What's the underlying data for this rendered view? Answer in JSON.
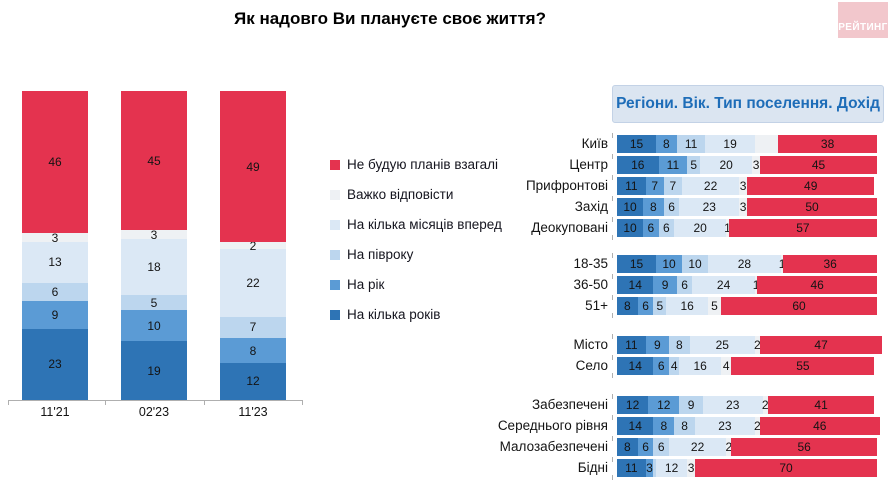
{
  "title": "Як надовго Ви плануєте своє життя?",
  "logo": {
    "text": "РЕЙТИНГ"
  },
  "colors": {
    "no_plans": "#E4334F",
    "hard_to_answer": "#EEF1F4",
    "few_months": "#DBE8F5",
    "half_year": "#BCD6EE",
    "one_year": "#5B9BD5",
    "several_years": "#2E74B5",
    "header_bg": "#DBE5F1",
    "header_text": "#1E6DB8",
    "logo_bg": "#F2C7CC",
    "axis": "#AFAFAF",
    "value_text": "#141414"
  },
  "legend": {
    "items": [
      {
        "label": "Не будую планів взагалі",
        "color_key": "no_plans"
      },
      {
        "label": "Важко відповісти",
        "color_key": "hard_to_answer"
      },
      {
        "label": "На кілька місяців вперед",
        "color_key": "few_months"
      },
      {
        "label": "На півроку",
        "color_key": "half_year"
      },
      {
        "label": "На рік",
        "color_key": "one_year"
      },
      {
        "label": "На кілька років",
        "color_key": "several_years"
      }
    ]
  },
  "chart_data": [
    {
      "type": "bar",
      "stacked": true,
      "orientation": "vertical",
      "title": "",
      "ylim": [
        0,
        100
      ],
      "categories": [
        "11'21",
        "02'23",
        "11'23"
      ],
      "series": [
        {
          "name": "На кілька років",
          "color_key": "several_years",
          "values": [
            23,
            19,
            12
          ]
        },
        {
          "name": "На рік",
          "color_key": "one_year",
          "values": [
            9,
            10,
            8
          ]
        },
        {
          "name": "На півроку",
          "color_key": "half_year",
          "values": [
            6,
            5,
            7
          ]
        },
        {
          "name": "На кілька місяців вперед",
          "color_key": "few_months",
          "values": [
            13,
            18,
            22
          ]
        },
        {
          "name": "Важко відповісти",
          "color_key": "hard_to_answer",
          "values": [
            3,
            3,
            2
          ]
        },
        {
          "name": "Не будую планів взагалі",
          "color_key": "no_plans",
          "values": [
            46,
            45,
            49
          ]
        }
      ]
    },
    {
      "type": "bar",
      "stacked": true,
      "orientation": "horizontal",
      "title": "Регіони. Вік. Тип поселення. Дохід",
      "xlim": [
        0,
        100
      ],
      "segment_order": [
        "На кілька років",
        "На рік",
        "На півроку",
        "На кілька місяців вперед",
        "Важко відповісти",
        "Не будую планів взагалі"
      ],
      "series_color_keys": [
        "several_years",
        "one_year",
        "half_year",
        "few_months",
        "hard_to_answer",
        "no_plans"
      ],
      "groups": [
        {
          "id": "regions",
          "rows": [
            {
              "label": "Київ",
              "values": [
                15,
                8,
                11,
                19,
                9,
                38
              ],
              "display": [
                "15",
                "8",
                "11",
                "19",
                "",
                "38"
              ]
            },
            {
              "label": "Центр",
              "values": [
                16,
                11,
                5,
                20,
                3,
                45
              ]
            },
            {
              "label": "Прифронтові",
              "values": [
                11,
                7,
                7,
                22,
                3,
                49
              ]
            },
            {
              "label": "Захід",
              "values": [
                10,
                8,
                6,
                23,
                3,
                50
              ]
            },
            {
              "label": "Деокуповані",
              "values": [
                10,
                6,
                6,
                20,
                1,
                57
              ]
            }
          ]
        },
        {
          "id": "age",
          "rows": [
            {
              "label": "18-35",
              "values": [
                15,
                10,
                10,
                28,
                1,
                36
              ]
            },
            {
              "label": "36-50",
              "values": [
                14,
                9,
                6,
                24,
                1,
                46
              ]
            },
            {
              "label": "51+",
              "values": [
                8,
                6,
                5,
                16,
                5,
                60
              ]
            }
          ]
        },
        {
          "id": "settlement",
          "rows": [
            {
              "label": "Місто",
              "values": [
                11,
                9,
                8,
                25,
                2,
                47
              ]
            },
            {
              "label": "Село",
              "values": [
                14,
                6,
                4,
                16,
                4,
                55
              ]
            }
          ]
        },
        {
          "id": "income",
          "rows": [
            {
              "label": "Забезпечені",
              "values": [
                12,
                12,
                9,
                23,
                2,
                41
              ]
            },
            {
              "label": "Середнього рівня",
              "values": [
                14,
                8,
                8,
                23,
                2,
                46
              ]
            },
            {
              "label": "Малозабезпечені",
              "values": [
                8,
                6,
                6,
                22,
                2,
                56
              ]
            },
            {
              "label": "Бідні",
              "values": [
                11,
                3,
                1,
                12,
                3,
                70
              ],
              "display": [
                "11",
                "3",
                "",
                "12",
                "3",
                "70"
              ]
            }
          ]
        }
      ]
    }
  ]
}
